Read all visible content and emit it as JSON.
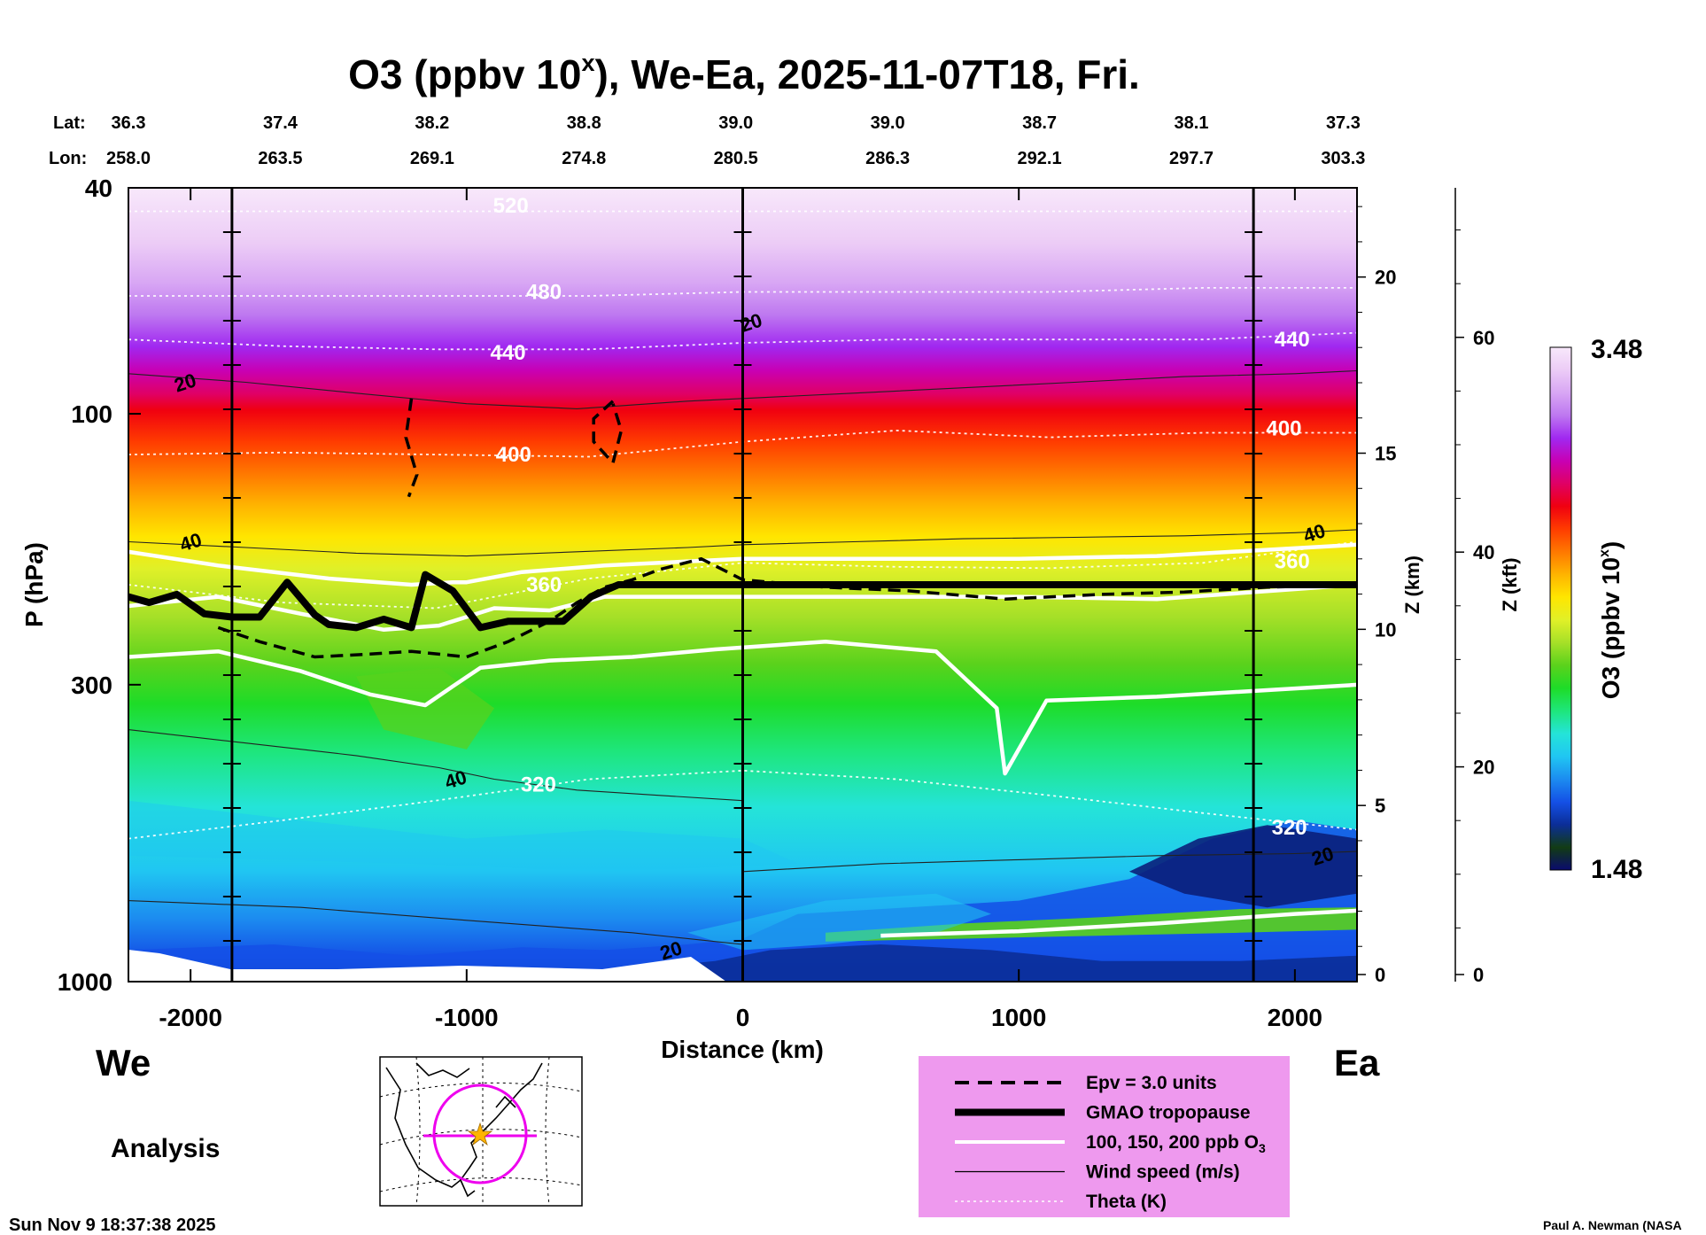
{
  "chart_data": {
    "type": "heatmap",
    "title": "O3 (ppbv 10",
    "title_sup": "x",
    "title_suffix": "), We-Ea, 2025-11-07T18, Fri.",
    "xlabel": "Distance (km)",
    "ylabel": "P (hPa)",
    "ylabel_z_km": "Z (km)",
    "ylabel_z_kft": "Z (kft)",
    "xlim": [
      -2225,
      2225
    ],
    "ylim": [
      1000,
      40
    ],
    "x_ticks": [
      -2000,
      -1000,
      0,
      1000,
      2000
    ],
    "x_tick_labels": [
      "-2000",
      "-1000",
      "0",
      "1000",
      "2000"
    ],
    "p_ticks": [
      40,
      100,
      300,
      1000
    ],
    "p_tick_labels": [
      "40",
      "100",
      "300",
      "1000"
    ],
    "z_km_ticks": [
      0,
      5,
      10,
      15,
      20
    ],
    "z_km_labels": [
      "0",
      "5",
      "10",
      "15",
      "20"
    ],
    "z_kft_ticks": [
      0,
      20,
      40,
      60
    ],
    "z_kft_labels": [
      "0",
      "20",
      "40",
      "60"
    ],
    "lat_label": "Lat:",
    "lon_label": "Lon:",
    "lat_values": [
      "36.3",
      "37.4",
      "38.2",
      "38.8",
      "39.0",
      "39.0",
      "38.7",
      "38.1",
      "37.3"
    ],
    "lon_values": [
      "258.0",
      "263.5",
      "269.1",
      "274.8",
      "280.5",
      "286.3",
      "292.1",
      "297.7",
      "303.3"
    ],
    "lat_lon_x": [
      -2225,
      -1675,
      -1125,
      -575,
      -25,
      525,
      1075,
      1625,
      2175
    ],
    "reference_lines_x": [
      -1850,
      0,
      1850
    ],
    "colorbar": {
      "label": "O3 (ppbv 10",
      "label_sup": "x",
      "label_suffix": ")",
      "max_label": "3.48",
      "min_label": "1.48",
      "min": 1.48,
      "max": 3.48,
      "colors": [
        "#0a0a6e",
        "#123c14",
        "#0b2e98",
        "#1450e6",
        "#1c8cf0",
        "#20c6f2",
        "#24e4d8",
        "#1ee67c",
        "#1edc28",
        "#5ad21c",
        "#a6e028",
        "#e0f028",
        "#ffe600",
        "#ffb400",
        "#ff7800",
        "#ff3c00",
        "#f00010",
        "#e00064",
        "#c800b4",
        "#a028f0",
        "#be78f0",
        "#d8a6f4",
        "#ecccf6",
        "#f8e8fb"
      ]
    },
    "theta_contours": [
      {
        "label": "320",
        "p": [
          560,
          520,
          480,
          440,
          425,
          440,
          470,
          505,
          540
        ]
      },
      {
        "label": "360",
        "p": [
          200,
          215,
          220,
          195,
          183,
          186,
          187,
          183,
          168
        ]
      },
      {
        "label": "400",
        "p": [
          118,
          117,
          118,
          119,
          112,
          107,
          110,
          108,
          108
        ]
      },
      {
        "label": "440",
        "p": [
          74,
          76,
          77,
          77,
          75,
          74,
          74,
          74,
          72
        ]
      },
      {
        "label": "480",
        "p": [
          62,
          62,
          62,
          62,
          61,
          61,
          61,
          60,
          60
        ]
      },
      {
        "label": "520",
        "p": [
          44,
          44,
          44,
          44,
          44,
          44,
          44,
          44,
          44
        ]
      }
    ],
    "theta_label_positions": [
      {
        "label": "320",
        "x": -740,
        "p": 450
      },
      {
        "label": "360",
        "x": -720,
        "p": 200
      },
      {
        "label": "400",
        "x": -830,
        "p": 118
      },
      {
        "label": "440",
        "x": -850,
        "p": 78
      },
      {
        "label": "480",
        "x": -720,
        "p": 61
      },
      {
        "label": "520",
        "x": -840,
        "p": 43
      },
      {
        "label": "440",
        "x": 1990,
        "p": 74
      },
      {
        "label": "400",
        "x": 1960,
        "p": 106
      },
      {
        "label": "360",
        "x": 1990,
        "p": 182
      },
      {
        "label": "320",
        "x": 1980,
        "p": 535
      }
    ],
    "tropopause": {
      "x": [
        -2225,
        -2150,
        -2050,
        -1950,
        -1850,
        -1750,
        -1650,
        -1550,
        -1500,
        -1400,
        -1300,
        -1200,
        -1150,
        -1050,
        -950,
        -850,
        -750,
        -650,
        -550,
        -450,
        -300,
        0,
        2225
      ],
      "p": [
        210,
        215,
        208,
        225,
        228,
        228,
        198,
        226,
        235,
        238,
        230,
        238,
        192,
        205,
        238,
        232,
        232,
        232,
        210,
        200,
        200,
        200,
        200
      ]
    },
    "epv": [
      {
        "x": [
          -1900,
          -1750,
          -1550,
          -1350,
          -1200,
          -1000,
          -850,
          -700,
          -600,
          -500,
          -400,
          -300,
          -150,
          0,
          300,
          600,
          950,
          1300,
          1600,
          1900,
          2225
        ],
        "p": [
          238,
          252,
          268,
          265,
          262,
          268,
          252,
          232,
          215,
          202,
          196,
          188,
          180,
          196,
          202,
          205,
          212,
          208,
          206,
          202,
          200
        ]
      },
      {
        "x": [
          -1200,
          -1220,
          -1180,
          -1210
        ],
        "p": [
          94,
          110,
          128,
          140
        ]
      },
      {
        "x": [
          -470,
          -540,
          -540,
          -470,
          -440,
          -470
        ],
        "p": [
          95,
          102,
          112,
          122,
          107,
          96
        ]
      }
    ],
    "o3_100ppb_contours": [
      {
        "x": [
          -2225,
          -1900,
          -1600,
          -1300,
          -1100,
          -900,
          -700,
          -500,
          0,
          500,
          1000,
          1500,
          2225
        ],
        "p": [
          218,
          210,
          225,
          240,
          236,
          220,
          222,
          210,
          210,
          210,
          210,
          212,
          200
        ]
      },
      {
        "x": [
          -2225,
          -1900,
          -1600,
          -1350,
          -1150,
          -1050,
          -950,
          -700,
          -400,
          -100,
          300,
          700,
          920,
          950,
          1100,
          1500,
          2225
        ],
        "p": [
          268,
          262,
          284,
          312,
          326,
          302,
          280,
          272,
          268,
          260,
          252,
          262,
          330,
          430,
          320,
          315,
          300
        ]
      }
    ],
    "o3_150ppb_contours": [
      {
        "x": [
          -2225,
          -1900,
          -1500,
          -1200,
          -1050,
          -1000,
          -800,
          -500,
          0,
          500,
          1000,
          1500,
          2225
        ],
        "p": [
          175,
          185,
          195,
          200,
          198,
          198,
          190,
          185,
          180,
          180,
          180,
          178,
          170
        ]
      }
    ],
    "o3_200ppb_contours": [
      {
        "x": [
          500,
          1000,
          1500,
          2000,
          2225
        ],
        "p": [
          830,
          815,
          790,
          760,
          750
        ]
      }
    ],
    "wind_contours": [
      {
        "label": "20",
        "x": [
          -2225,
          -1800,
          -1400,
          -1000,
          -600,
          -200,
          0,
          400,
          800,
          1200,
          1600,
          2000,
          2225
        ],
        "p": [
          85,
          88,
          92,
          96,
          98,
          95,
          94,
          92,
          90,
          88,
          86,
          85,
          84
        ]
      },
      {
        "label": "40",
        "x": [
          -2225,
          -1800,
          -1400,
          -1000,
          -600,
          -200,
          0,
          400,
          800,
          1200,
          1600,
          2000,
          2225
        ],
        "p": [
          168,
          172,
          176,
          178,
          175,
          172,
          170,
          168,
          166,
          165,
          164,
          162,
          160
        ]
      },
      {
        "label": "40",
        "x": [
          -2225,
          -1800,
          -1400,
          -1100,
          -900,
          -600,
          -300,
          0
        ],
        "p": [
          360,
          380,
          400,
          420,
          440,
          460,
          470,
          480
        ]
      },
      {
        "label": "20",
        "x": [
          0,
          500,
          1000,
          1500,
          2000,
          2225
        ],
        "p": [
          640,
          620,
          610,
          600,
          595,
          590
        ]
      },
      {
        "label": "20",
        "x": [
          -2225,
          -1600,
          -1000,
          -400,
          0
        ],
        "p": [
          720,
          740,
          780,
          820,
          860
        ]
      }
    ],
    "wind_label_positions": [
      {
        "label": "20",
        "x": -2020,
        "p": 88
      },
      {
        "label": "20",
        "x": 30,
        "p": 69
      },
      {
        "label": "40",
        "x": -2000,
        "p": 168
      },
      {
        "label": "40",
        "x": -1040,
        "p": 440
      },
      {
        "label": "40",
        "x": 2070,
        "p": 162
      },
      {
        "label": "20",
        "x": 2100,
        "p": 600
      },
      {
        "label": "20",
        "x": -260,
        "p": 880
      }
    ]
  },
  "region_labels": {
    "west": "We",
    "east": "Ea"
  },
  "analysis_label": "Analysis",
  "legend": {
    "items": [
      {
        "style": "dashed",
        "label": "Epv = 3.0 units"
      },
      {
        "style": "thick",
        "label": "GMAO tropopause"
      },
      {
        "style": "white",
        "label": "100, 150, 200 ppb O"
      },
      {
        "style": "thin",
        "label": "Wind speed (m/s)"
      },
      {
        "style": "dotted",
        "label": "Theta (K)"
      }
    ],
    "o3_subscript": "3",
    "background": "#ee99ee"
  },
  "timestamp": "Sun Nov  9 18:37:38 2025",
  "credit": "Paul A. Newman (NASA"
}
